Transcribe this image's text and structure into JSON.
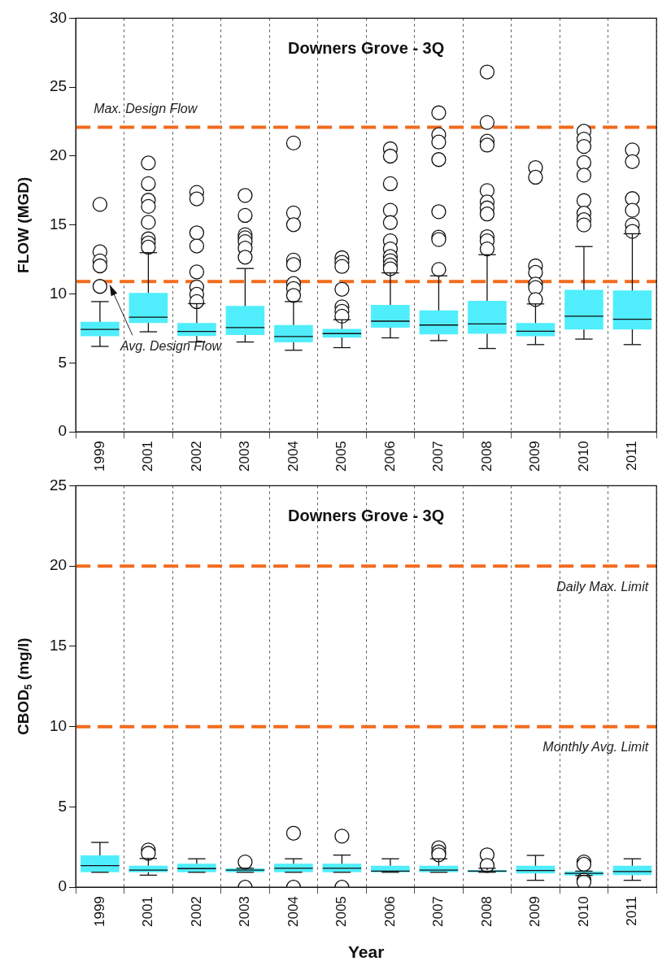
{
  "chart_data": [
    {
      "type": "box",
      "title": "Downers Grove - 3Q",
      "ylabel": "FLOW (MGD)",
      "categories": [
        "1999",
        "2001",
        "2002",
        "2003",
        "2004",
        "2005",
        "2006",
        "2007",
        "2008",
        "2009",
        "2010",
        "2011"
      ],
      "color": "#50eefc",
      "ylim": [
        0,
        30
      ],
      "yticks": [
        0,
        5,
        10,
        15,
        20,
        25,
        30
      ],
      "grid": "x",
      "boxes": [
        {
          "low": 6.2,
          "q1": 6.94,
          "median": 7.43,
          "q3": 7.98,
          "high": 9.45,
          "outliers": [
            16.5,
            13.06,
            12.4,
            12.04,
            10.55
          ]
        },
        {
          "low": 7.26,
          "q1": 7.9,
          "median": 8.32,
          "q3": 10.08,
          "high": 13.0,
          "outliers": [
            19.5,
            18.0,
            16.8,
            16.35,
            15.2,
            14.0,
            13.7,
            13.4
          ]
        },
        {
          "low": 6.52,
          "q1": 6.96,
          "median": 7.28,
          "q3": 7.9,
          "high": 9.3,
          "outliers": [
            17.37,
            16.9,
            14.44,
            13.48,
            11.6,
            10.5,
            9.98,
            9.45
          ]
        },
        {
          "low": 6.52,
          "q1": 7.03,
          "median": 7.56,
          "q3": 9.13,
          "high": 11.85,
          "outliers": [
            17.15,
            15.7,
            14.3,
            14.08,
            13.8,
            13.33,
            12.67
          ]
        },
        {
          "low": 5.92,
          "q1": 6.5,
          "median": 6.92,
          "q3": 7.75,
          "high": 9.45,
          "outliers": [
            20.95,
            15.88,
            15.03,
            12.46,
            12.14,
            10.76,
            10.4,
            9.9
          ]
        },
        {
          "low": 6.11,
          "q1": 6.84,
          "median": 7.13,
          "q3": 7.47,
          "high": 8.13,
          "outliers": [
            12.63,
            12.3,
            12.0,
            10.34,
            9.07,
            8.75,
            8.39
          ]
        },
        {
          "low": 6.82,
          "q1": 7.56,
          "median": 8.03,
          "q3": 9.21,
          "high": 11.53,
          "outliers": [
            20.53,
            20.0,
            18.0,
            16.07,
            15.18,
            13.86,
            13.27,
            12.72,
            12.42,
            12.1,
            11.83
          ]
        },
        {
          "low": 6.62,
          "q1": 7.07,
          "median": 7.75,
          "q3": 8.81,
          "high": 11.32,
          "outliers": [
            23.14,
            21.55,
            21.02,
            19.75,
            15.97,
            14.12,
            13.95,
            11.78
          ]
        },
        {
          "low": 6.05,
          "q1": 7.11,
          "median": 7.83,
          "q3": 9.51,
          "high": 12.85,
          "outliers": [
            26.1,
            22.44,
            21.08,
            20.8,
            17.5,
            16.67,
            16.24,
            15.8,
            14.16,
            13.86,
            13.27
          ]
        },
        {
          "low": 6.33,
          "q1": 6.94,
          "median": 7.3,
          "q3": 7.9,
          "high": 9.28,
          "outliers": [
            19.17,
            18.47,
            12.04,
            11.57,
            10.72,
            10.47,
            9.6
          ]
        },
        {
          "low": 6.73,
          "q1": 7.43,
          "median": 8.39,
          "q3": 10.3,
          "high": 13.44,
          "outliers": [
            21.8,
            21.23,
            20.7,
            19.53,
            18.62,
            16.77,
            15.86,
            15.39,
            15.01
          ]
        },
        {
          "low": 6.33,
          "q1": 7.43,
          "median": 8.17,
          "q3": 10.25,
          "high": 14.37,
          "outliers": [
            20.45,
            19.6,
            16.92,
            16.07,
            15.01,
            14.54
          ]
        }
      ],
      "ref_lines": [
        {
          "axis": "y",
          "value": 22.1,
          "label": "Max. Design Flow",
          "color": "#f26b1d",
          "line_style": "dashed"
        },
        {
          "axis": "y",
          "value": 10.9,
          "label": "Avg. Design Flow",
          "color": "#f26b1d",
          "line_style": "dashed"
        }
      ]
    },
    {
      "type": "box",
      "title": "Downers Grove - 3Q",
      "ylabel": "CBOD$_{5}$ (mg/l)",
      "xlabel": "Year",
      "categories": [
        "1999",
        "2001",
        "2002",
        "2003",
        "2004",
        "2005",
        "2006",
        "2007",
        "2008",
        "2009",
        "2010",
        "2011"
      ],
      "color": "#50eefc",
      "ylim": [
        0,
        25
      ],
      "yticks": [
        0,
        5,
        10,
        15,
        20,
        25
      ],
      "grid": "x",
      "boxes": [
        {
          "low": 0.93,
          "q1": 0.93,
          "median": 1.34,
          "q3": 1.98,
          "high": 2.79
        },
        {
          "low": 0.75,
          "q1": 0.93,
          "median": 1.07,
          "q3": 1.34,
          "high": 1.79,
          "outliers": [
            2.32,
            2.11
          ]
        },
        {
          "low": 0.93,
          "q1": 0.93,
          "median": 1.16,
          "q3": 1.46,
          "high": 1.77
        },
        {
          "low": 0.93,
          "q1": 0.93,
          "median": 1.07,
          "q3": 1.18,
          "high": 1.18,
          "outliers": [
            1.57,
            0
          ]
        },
        {
          "low": 0.93,
          "q1": 0.93,
          "median": 1.18,
          "q3": 1.46,
          "high": 1.77,
          "outliers": [
            3.36,
            0
          ]
        },
        {
          "low": 0.93,
          "q1": 0.93,
          "median": 1.18,
          "q3": 1.46,
          "high": 2.0,
          "outliers": [
            3.18,
            0
          ]
        },
        {
          "low": 0.93,
          "q1": 0.93,
          "median": 1.0,
          "q3": 1.34,
          "high": 1.77
        },
        {
          "low": 0.93,
          "q1": 0.93,
          "median": 1.07,
          "q3": 1.34,
          "high": 1.77,
          "outliers": [
            2.46,
            2.2,
            2.02
          ]
        },
        {
          "low": 0.93,
          "q1": 0.93,
          "median": 1.0,
          "q3": 1.07,
          "high": 1.18,
          "outliers": [
            2.02,
            1.36
          ]
        },
        {
          "low": 0.43,
          "q1": 0.86,
          "median": 1.04,
          "q3": 1.34,
          "high": 1.98
        },
        {
          "low": 0.73,
          "q1": 0.73,
          "median": 0.86,
          "q3": 0.98,
          "high": 1.0,
          "outliers": [
            1.57,
            1.43,
            0.45,
            0.32
          ]
        },
        {
          "low": 0.43,
          "q1": 0.75,
          "median": 0.98,
          "q3": 1.34,
          "high": 1.77
        }
      ],
      "ref_lines": [
        {
          "axis": "y",
          "value": 20,
          "label": "Daily Max. Limit",
          "color": "#f26b1d",
          "line_style": "dashed"
        },
        {
          "axis": "y",
          "value": 10,
          "label": "Monthly Avg. Limit",
          "color": "#f26b1d",
          "line_style": "dashed"
        }
      ]
    }
  ]
}
